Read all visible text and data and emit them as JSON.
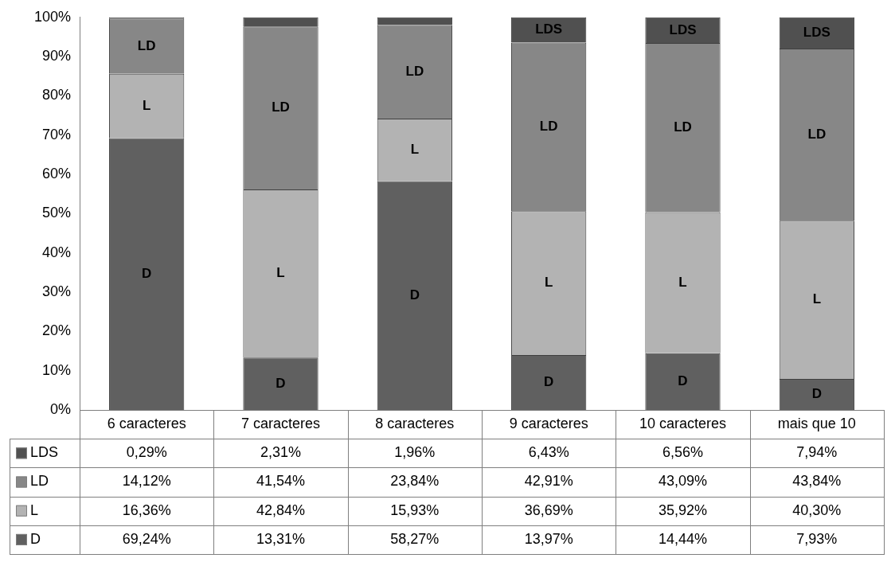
{
  "chart_data": {
    "type": "bar",
    "stacked": true,
    "legend": "bottom",
    "categories": [
      "6 caracteres",
      "7 caracteres",
      "8 caracteres",
      "9 caracteres",
      "10 caracteres",
      "mais que 10"
    ],
    "ylim": [
      0,
      100
    ],
    "yticks": [
      {
        "value": 0,
        "label": "0%"
      },
      {
        "value": 10,
        "label": "10%"
      },
      {
        "value": 20,
        "label": "20%"
      },
      {
        "value": 30,
        "label": "30%"
      },
      {
        "value": 40,
        "label": "40%"
      },
      {
        "value": 50,
        "label": "50%"
      },
      {
        "value": 60,
        "label": "60%"
      },
      {
        "value": 70,
        "label": "70%"
      },
      {
        "value": 80,
        "label": "80%"
      },
      {
        "value": 90,
        "label": "90%"
      },
      {
        "value": 100,
        "label": "100%"
      }
    ],
    "series": [
      {
        "name": "D",
        "color": "#606060",
        "values": [
          69.24,
          13.31,
          58.27,
          13.97,
          14.44,
          7.93
        ],
        "value_labels": [
          "69,24%",
          "13,31%",
          "58,27%",
          "13,97%",
          "14,44%",
          "7,93%"
        ]
      },
      {
        "name": "L",
        "color": "#b3b3b3",
        "values": [
          16.36,
          42.84,
          15.93,
          36.69,
          35.92,
          40.3
        ],
        "value_labels": [
          "16,36%",
          "42,84%",
          "15,93%",
          "36,69%",
          "35,92%",
          "40,30%"
        ]
      },
      {
        "name": "LD",
        "color": "#878787",
        "values": [
          14.12,
          41.54,
          23.84,
          42.91,
          43.09,
          43.84
        ],
        "value_labels": [
          "14,12%",
          "41,54%",
          "23,84%",
          "42,91%",
          "43,09%",
          "43,84%"
        ]
      },
      {
        "name": "LDS",
        "color": "#505050",
        "values": [
          0.29,
          2.31,
          1.96,
          6.43,
          6.56,
          7.94
        ],
        "value_labels": [
          "0,29%",
          "2,31%",
          "1,96%",
          "6,43%",
          "6,56%",
          "7,94%"
        ]
      }
    ]
  }
}
